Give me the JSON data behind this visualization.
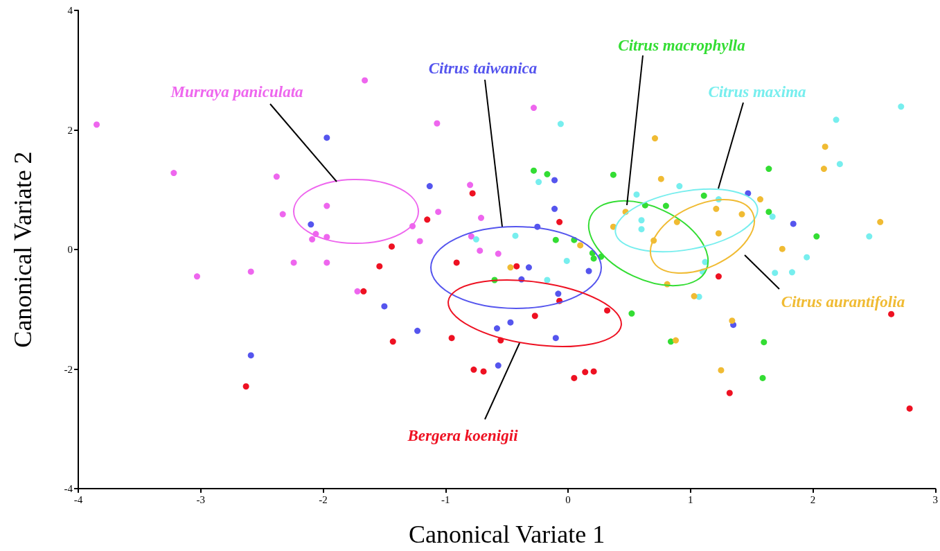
{
  "chart_data": {
    "type": "scatter",
    "xlabel": "Canonical Variate 1",
    "ylabel": "Canonical Variate 2",
    "xlim": [
      -4,
      3
    ],
    "xticks": [
      -4,
      -3,
      -2,
      -1,
      0,
      1,
      2,
      3
    ],
    "ylim": [
      -4,
      4
    ],
    "yticks": [
      -4,
      -2,
      0,
      2,
      4
    ],
    "marker": "circle",
    "series": [
      {
        "color": "#ee66ee",
        "x": [
          -3.85,
          -3.22,
          -2.38,
          -2.33,
          -1.97,
          -2.06,
          -2.09,
          -1.97,
          -2.24,
          -1.97,
          -1.66,
          -3.03,
          -2.59,
          -1.72,
          -1.07,
          -0.28,
          -0.8,
          -1.06,
          -0.71,
          -1.27,
          -1.21,
          -0.79,
          -0.72,
          -0.57
        ],
        "values": [
          2.09,
          1.28,
          1.22,
          0.59,
          0.73,
          0.26,
          0.17,
          0.21,
          -0.22,
          -0.22,
          2.83,
          -0.45,
          -0.37,
          -0.7,
          2.11,
          2.37,
          1.08,
          0.63,
          0.53,
          0.39,
          0.14,
          0.22,
          -0.02,
          -0.07
        ]
      },
      {
        "color": "#5555ee",
        "x": [
          -1.97,
          -2.1,
          -2.59,
          -0.11,
          -1.13,
          -0.11,
          -0.25,
          -0.32,
          0.17,
          -0.38,
          -1.5,
          -0.08,
          -0.47,
          -0.58,
          -1.23,
          -0.1,
          -0.57,
          1.47,
          1.84,
          1.35
        ],
        "values": [
          1.87,
          0.42,
          -1.77,
          1.16,
          1.06,
          0.68,
          0.38,
          -0.3,
          -0.36,
          -0.5,
          -0.95,
          -0.74,
          -1.22,
          -1.32,
          -1.36,
          -1.48,
          -1.94,
          0.94,
          0.43,
          -1.26
        ]
      },
      {
        "color": "#ee1122",
        "x": [
          -1.67,
          -2.63,
          -0.78,
          -1.15,
          -0.07,
          -1.44,
          -1.54,
          -0.91,
          -0.42,
          -0.07,
          0.32,
          -0.27,
          -1.43,
          -0.95,
          -0.55,
          -0.77,
          -0.69,
          0.05,
          0.14,
          0.21,
          1.23,
          1.32,
          2.64,
          2.79
        ],
        "values": [
          -0.7,
          -2.29,
          0.94,
          0.5,
          0.46,
          0.05,
          -0.28,
          -0.22,
          -0.28,
          -0.86,
          -1.02,
          -1.11,
          -1.54,
          -1.48,
          -1.52,
          -2.01,
          -2.04,
          -2.15,
          -2.05,
          -2.04,
          -0.45,
          -2.4,
          -1.08,
          -2.66
        ]
      },
      {
        "color": "#33dd33",
        "x": [
          -0.28,
          -0.17,
          0.37,
          -0.1,
          0.05,
          0.2,
          0.21,
          0.27,
          0.63,
          -0.6,
          0.52,
          1.11,
          0.8,
          1.64,
          1.64,
          2.03,
          0.84,
          1.6,
          1.59
        ],
        "values": [
          1.32,
          1.26,
          1.25,
          0.16,
          0.16,
          -0.06,
          -0.15,
          -0.12,
          0.74,
          -0.51,
          -1.07,
          0.9,
          0.73,
          1.35,
          0.63,
          0.22,
          -1.54,
          -1.55,
          -2.15
        ]
      },
      {
        "color": "#77eeee",
        "x": [
          -0.06,
          -0.24,
          -0.75,
          -0.43,
          -0.01,
          -0.17,
          0.56,
          0.6,
          0.6,
          0.91,
          1.23,
          1.67,
          2.46,
          1.95,
          2.19,
          2.72,
          2.22,
          1.69,
          1.83,
          1.12,
          1.1,
          1.07
        ],
        "values": [
          2.1,
          1.13,
          0.17,
          0.23,
          -0.19,
          -0.51,
          0.92,
          0.49,
          0.34,
          1.06,
          0.84,
          0.55,
          0.22,
          -0.13,
          2.17,
          2.39,
          1.43,
          -0.39,
          -0.38,
          -0.21,
          -0.37,
          -0.79
        ]
      },
      {
        "color": "#f0bb33",
        "x": [
          0.1,
          -0.47,
          0.47,
          0.37,
          0.71,
          0.76,
          1.21,
          1.42,
          1.57,
          0.89,
          1.23,
          0.7,
          2.55,
          1.75,
          2.1,
          2.09,
          0.81,
          1.03,
          1.34,
          0.88,
          1.25
        ],
        "values": [
          0.07,
          -0.3,
          0.63,
          0.38,
          1.86,
          1.18,
          0.68,
          0.59,
          0.84,
          0.46,
          0.27,
          0.15,
          0.46,
          0.01,
          1.72,
          1.35,
          -0.58,
          -0.78,
          -1.19,
          -1.52,
          -2.02
        ]
      }
    ],
    "annotations": [
      "Murraya paniculata",
      "Citrus taiwanica",
      "Bergera koenigii",
      "Citrus macrophylla",
      "Citrus maxima",
      "Citrus aurantifolia"
    ]
  }
}
